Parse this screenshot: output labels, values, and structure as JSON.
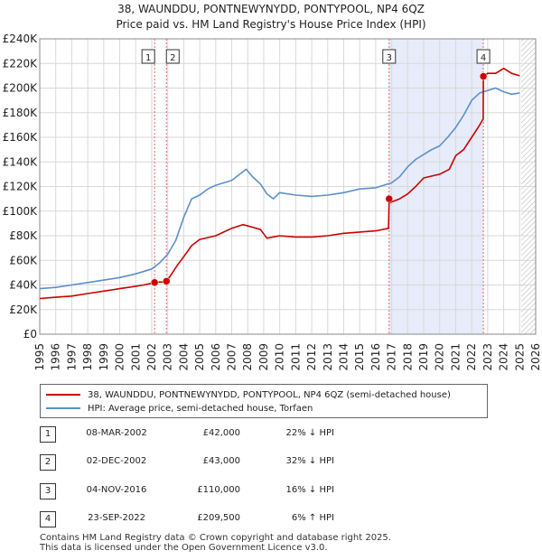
{
  "chart_data": {
    "type": "line",
    "title": "38, WAUNDDU, PONTNEWYNYDD, PONTYPOOL, NP4 6QZ",
    "subtitle": "Price paid vs. HM Land Registry's House Price Index (HPI)",
    "xlim": [
      1995,
      2026
    ],
    "ylim": [
      0,
      240000
    ],
    "x_ticks": [
      "1995",
      "1996",
      "1997",
      "1998",
      "1999",
      "2000",
      "2001",
      "2002",
      "2003",
      "2004",
      "2005",
      "2006",
      "2007",
      "2008",
      "2009",
      "2010",
      "2011",
      "2012",
      "2013",
      "2014",
      "2015",
      "2016",
      "2017",
      "2018",
      "2019",
      "2020",
      "2021",
      "2022",
      "2023",
      "2024",
      "2025",
      "2026"
    ],
    "y_ticks": [
      "£0",
      "£20K",
      "£40K",
      "£60K",
      "£80K",
      "£100K",
      "£120K",
      "£140K",
      "£160K",
      "£180K",
      "£200K",
      "£220K",
      "£240K"
    ],
    "grid": true,
    "series": [
      {
        "name": "38, WAUNDDU, PONTNEWYNYDD, PONTYPOOL, NP4 6QZ (semi-detached house)",
        "color": "#cc0000",
        "x": [
          1995.0,
          1996.0,
          1997.0,
          1998.0,
          1999.0,
          2000.0,
          2001.0,
          2001.5,
          2002.18,
          2002.2,
          2002.5,
          2002.9,
          2002.92,
          2003.2,
          2003.6,
          2004.0,
          2004.5,
          2005.0,
          2006.0,
          2007.0,
          2007.7,
          2008.3,
          2008.8,
          2009.2,
          2010.0,
          2011.0,
          2012.0,
          2013.0,
          2014.0,
          2015.0,
          2016.0,
          2016.8,
          2016.84,
          2016.9,
          2017.5,
          2018.0,
          2018.5,
          2019.0,
          2020.0,
          2020.6,
          2021.0,
          2021.5,
          2022.0,
          2022.5,
          2022.72,
          2022.73,
          2023.0,
          2023.5,
          2024.0,
          2024.5,
          2025.0
        ],
        "values": [
          29000,
          30000,
          31000,
          33000,
          35000,
          37000,
          39000,
          40000,
          42000,
          41500,
          42500,
          42000,
          43000,
          48000,
          56000,
          63000,
          72000,
          77000,
          80000,
          86000,
          89000,
          87000,
          85000,
          78000,
          80000,
          79000,
          79000,
          80000,
          82000,
          83000,
          84000,
          86000,
          110000,
          107000,
          110000,
          114000,
          120000,
          127000,
          130000,
          134000,
          145000,
          150000,
          160000,
          170000,
          175000,
          209500,
          212000,
          212000,
          216000,
          212000,
          210000
        ]
      },
      {
        "name": "HPI: Average price, semi-detached house, Torfaen",
        "color": "#5b8fc9",
        "x": [
          1995.0,
          1996.0,
          1997.0,
          1998.0,
          1999.0,
          2000.0,
          2001.0,
          2002.0,
          2002.5,
          2003.0,
          2003.5,
          2004.0,
          2004.5,
          2005.0,
          2005.5,
          2006.0,
          2006.5,
          2007.0,
          2007.5,
          2007.9,
          2008.3,
          2008.8,
          2009.2,
          2009.6,
          2010.0,
          2011.0,
          2012.0,
          2013.0,
          2014.0,
          2015.0,
          2016.0,
          2017.0,
          2017.5,
          2018.0,
          2018.5,
          2019.0,
          2019.5,
          2020.0,
          2020.5,
          2021.0,
          2021.5,
          2022.0,
          2022.5,
          2023.0,
          2023.5,
          2024.0,
          2024.5,
          2025.0
        ],
        "values": [
          37000,
          38000,
          40000,
          42000,
          44000,
          46000,
          49000,
          53000,
          58000,
          65000,
          76000,
          95000,
          110000,
          113000,
          118000,
          121000,
          123000,
          125000,
          130000,
          134000,
          128000,
          122000,
          114000,
          110000,
          115000,
          113000,
          112000,
          113000,
          115000,
          118000,
          119000,
          123000,
          128000,
          136000,
          142000,
          146000,
          150000,
          153000,
          160000,
          168000,
          178000,
          190000,
          196000,
          198000,
          200000,
          197000,
          195000,
          196000
        ]
      }
    ],
    "transactions": [
      {
        "num": "1",
        "x": 2002.18,
        "value": 42000
      },
      {
        "num": "2",
        "x": 2002.92,
        "value": 43000
      },
      {
        "num": "3",
        "x": 2016.84,
        "value": 110000
      },
      {
        "num": "4",
        "x": 2022.73,
        "value": 209500
      }
    ],
    "shaded_range": [
      2016.84,
      2022.73
    ],
    "hatched_from": 2025.1
  },
  "legend": {
    "price_label": "38, WAUNDDU, PONTNEWYNYDD, PONTYPOOL, NP4 6QZ (semi-detached house)",
    "hpi_label": "HPI: Average price, semi-detached house, Torfaen"
  },
  "transactions_table": [
    {
      "num": "1",
      "date": "08-MAR-2002",
      "price": "£42,000",
      "hpi": "22% ↓ HPI"
    },
    {
      "num": "2",
      "date": "02-DEC-2002",
      "price": "£43,000",
      "hpi": "32% ↓ HPI"
    },
    {
      "num": "3",
      "date": "04-NOV-2016",
      "price": "£110,000",
      "hpi": "16% ↓ HPI"
    },
    {
      "num": "4",
      "date": "23-SEP-2022",
      "price": "£209,500",
      "hpi": "6% ↑ HPI"
    }
  ],
  "footer": {
    "line1": "Contains HM Land Registry data © Crown copyright and database right 2025.",
    "line2": "This data is licensed under the Open Government Licence v3.0."
  }
}
